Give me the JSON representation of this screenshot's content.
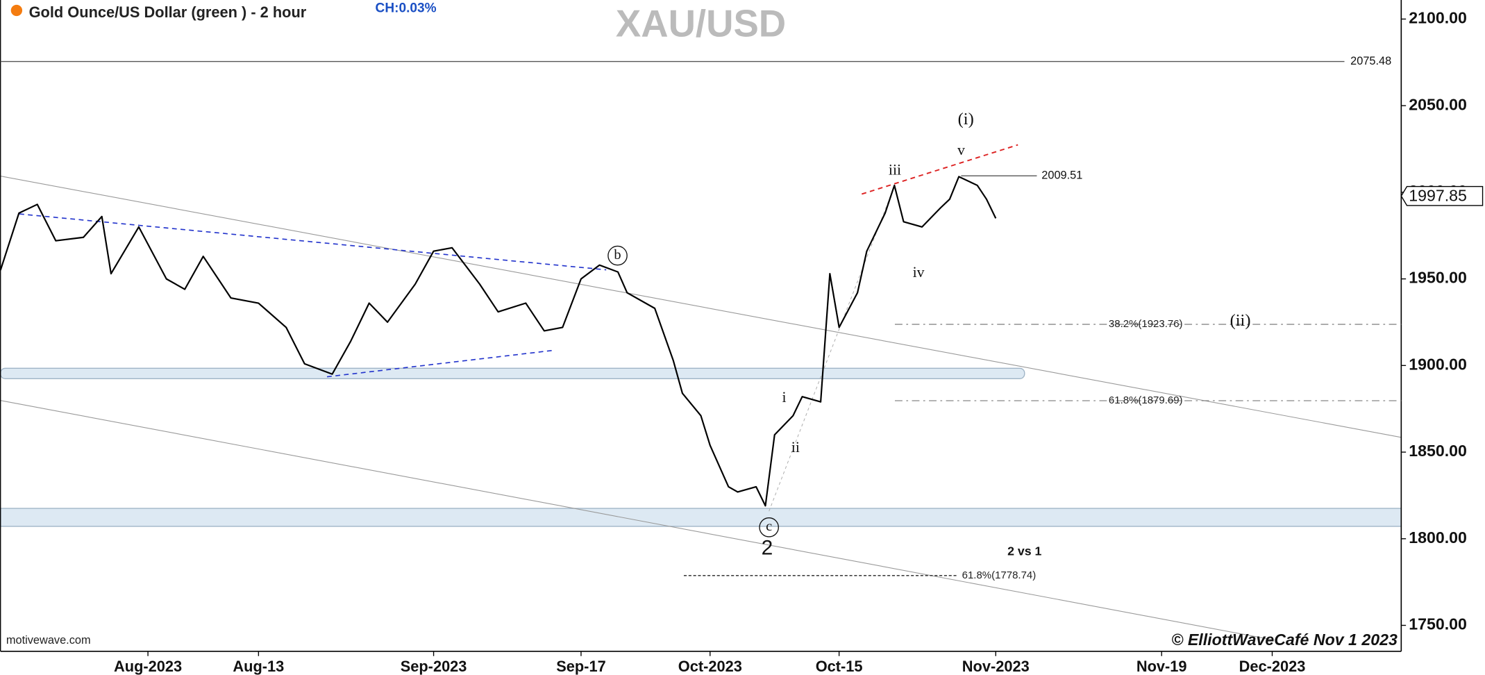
{
  "chart_data": {
    "type": "line",
    "title": "Gold Ounce/US Dollar (green ) - 2 hour",
    "change": "CH:0.03%",
    "symbol": "XAU/USD",
    "source": "motivewave.com",
    "copyright": "© ElliottWaveCafé Nov 1  2023",
    "color": "#000000",
    "x": [
      "2023-07-16",
      "2023-07-18",
      "2023-07-20",
      "2023-07-22",
      "2023-07-25",
      "2023-07-27",
      "2023-07-28",
      "2023-07-31",
      "2023-08-03",
      "2023-08-05",
      "2023-08-07",
      "2023-08-10",
      "2023-08-13",
      "2023-08-16",
      "2023-08-18",
      "2023-08-21",
      "2023-08-23",
      "2023-08-25",
      "2023-08-27",
      "2023-08-30",
      "2023-09-01",
      "2023-09-03",
      "2023-09-06",
      "2023-09-08",
      "2023-09-11",
      "2023-09-13",
      "2023-09-15",
      "2023-09-17",
      "2023-09-19",
      "2023-09-21",
      "2023-09-22",
      "2023-09-25",
      "2023-09-27",
      "2023-09-28",
      "2023-09-30",
      "2023-10-01",
      "2023-10-03",
      "2023-10-04",
      "2023-10-06",
      "2023-10-07",
      "2023-10-08",
      "2023-10-10",
      "2023-10-11",
      "2023-10-13",
      "2023-10-14",
      "2023-10-15",
      "2023-10-17",
      "2023-10-18",
      "2023-10-20",
      "2023-10-21",
      "2023-10-22",
      "2023-10-24",
      "2023-10-26",
      "2023-10-27",
      "2023-10-28",
      "2023-10-30",
      "2023-10-31",
      "2023-11-01"
    ],
    "values": [
      1955,
      1988,
      1993,
      1972,
      1974,
      1986,
      1953,
      1980,
      1950,
      1944,
      1963,
      1939,
      1936,
      1922,
      1901,
      1895,
      1914,
      1936,
      1925,
      1947,
      1966,
      1968,
      1947,
      1931,
      1936,
      1920,
      1922,
      1950,
      1958,
      1954,
      1942,
      1933,
      1903,
      1884,
      1871,
      1854,
      1830,
      1827,
      1830,
      1819,
      1860,
      1871,
      1882,
      1879,
      1953,
      1922,
      1942,
      1966,
      1988,
      2004,
      1983,
      1980,
      1991,
      1996,
      2009,
      2004,
      1996,
      1985
    ],
    "xlim": [
      "2023-07-16",
      "2023-12-15"
    ],
    "xticks": [
      {
        "value": "2023-08-01",
        "label": "Aug-2023"
      },
      {
        "value": "2023-08-13",
        "label": "Aug-13"
      },
      {
        "value": "2023-09-01",
        "label": "Sep-2023"
      },
      {
        "value": "2023-09-17",
        "label": "Sep-17"
      },
      {
        "value": "2023-10-01",
        "label": "Oct-2023"
      },
      {
        "value": "2023-10-15",
        "label": "Oct-15"
      },
      {
        "value": "2023-11-01",
        "label": "Nov-2023"
      },
      {
        "value": "2023-11-19",
        "label": "Nov-19"
      },
      {
        "value": "2023-12-01",
        "label": "Dec-2023"
      }
    ],
    "ylim": [
      1735,
      2111
    ],
    "yticks": [
      {
        "value": 1750,
        "label": "1750.00"
      },
      {
        "value": 1800,
        "label": "1800.00"
      },
      {
        "value": 1850,
        "label": "1850.00"
      },
      {
        "value": 1900,
        "label": "1900.00"
      },
      {
        "value": 1950,
        "label": "1950.00"
      },
      {
        "value": 2000,
        "label": "2000.00"
      },
      {
        "value": 2050,
        "label": "2050.00"
      },
      {
        "value": 2100,
        "label": "2100.00"
      }
    ],
    "last_price": 1997.85,
    "levels": [
      2075.48,
      2009.51
    ],
    "fib_levels": [
      {
        "value": 1923.76,
        "label": "38.2%(1923.76)"
      },
      {
        "value": 1879.69,
        "label": "61.8%(1879.69)"
      },
      {
        "value": 1778.74,
        "label": "61.8%(1778.74)"
      }
    ],
    "wave_labels": [
      "(i)",
      "v",
      "iii",
      "iv",
      "(ii)",
      "i",
      "ii",
      "b",
      "c",
      "2",
      "2 vs 1"
    ]
  }
}
